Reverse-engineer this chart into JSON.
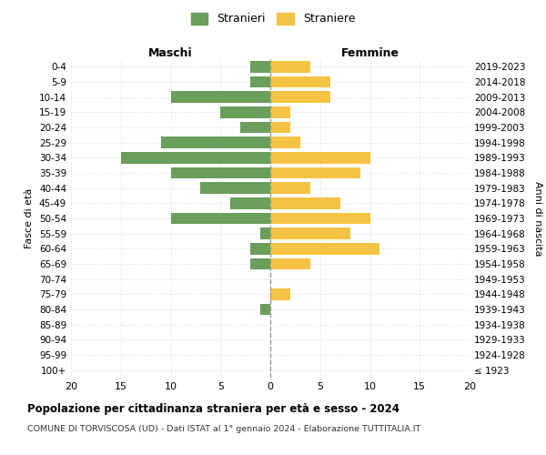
{
  "age_groups": [
    "100+",
    "95-99",
    "90-94",
    "85-89",
    "80-84",
    "75-79",
    "70-74",
    "65-69",
    "60-64",
    "55-59",
    "50-54",
    "45-49",
    "40-44",
    "35-39",
    "30-34",
    "25-29",
    "20-24",
    "15-19",
    "10-14",
    "5-9",
    "0-4"
  ],
  "birth_years": [
    "≤ 1923",
    "1924-1928",
    "1929-1933",
    "1934-1938",
    "1939-1943",
    "1944-1948",
    "1949-1953",
    "1954-1958",
    "1959-1963",
    "1964-1968",
    "1969-1973",
    "1974-1978",
    "1979-1983",
    "1984-1988",
    "1989-1993",
    "1994-1998",
    "1999-2003",
    "2004-2008",
    "2009-2013",
    "2014-2018",
    "2019-2023"
  ],
  "maschi": [
    0,
    0,
    0,
    0,
    1,
    0,
    0,
    2,
    2,
    1,
    10,
    4,
    7,
    10,
    15,
    11,
    3,
    5,
    10,
    2,
    2
  ],
  "femmine": [
    0,
    0,
    0,
    0,
    0,
    2,
    0,
    4,
    11,
    8,
    10,
    7,
    4,
    9,
    10,
    3,
    2,
    2,
    6,
    6,
    4
  ],
  "maschi_color": "#6a9e5b",
  "femmine_color": "#f5c343",
  "title": "Popolazione per cittadinanza straniera per età e sesso - 2024",
  "subtitle": "COMUNE DI TORVISCOSA (UD) - Dati ISTAT al 1° gennaio 2024 - Elaborazione TUTTITALIA.IT",
  "legend_maschi": "Stranieri",
  "legend_femmine": "Straniere",
  "label_maschi": "Maschi",
  "label_femmine": "Femmine",
  "ylabel_left": "Fasce di età",
  "ylabel_right": "Anni di nascita",
  "xlim": 20,
  "background_color": "#ffffff",
  "grid_color": "#dddddd",
  "centerline_color": "#999999",
  "centerline_style": "--"
}
